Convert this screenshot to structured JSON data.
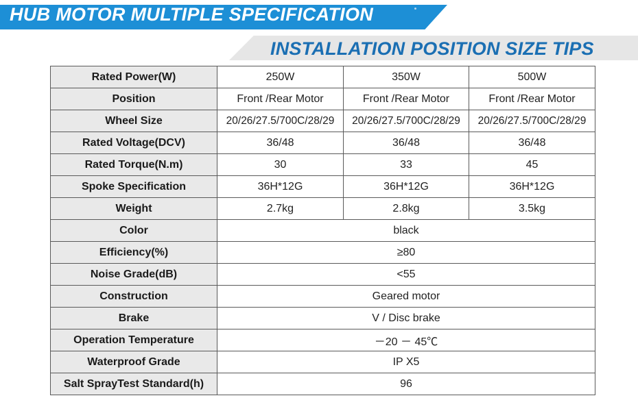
{
  "header": {
    "title": "HUB MOTOR MULTIPLE SPECIFICATION",
    "subtitle": "INSTALLATION  POSITION SIZE TIPS",
    "title_bg": "#1d8fd6",
    "subtitle_color": "#1b6fb3"
  },
  "table": {
    "rows": [
      {
        "label": "Rated Power(W)",
        "values": [
          "250W",
          "350W",
          "500W"
        ]
      },
      {
        "label": "Position",
        "values": [
          "Front /Rear Motor",
          "Front /Rear Motor",
          "Front /Rear Motor"
        ]
      },
      {
        "label": "Wheel Size",
        "values": [
          "20/26/27.5/700C/28/29",
          "20/26/27.5/700C/28/29",
          "20/26/27.5/700C/28/29"
        ]
      },
      {
        "label": "Rated Voltage(DCV)",
        "values": [
          "36/48",
          "36/48",
          "36/48"
        ]
      },
      {
        "label": "Rated Torque(N.m)",
        "values": [
          "30",
          "33",
          "45"
        ]
      },
      {
        "label": "Spoke Specification",
        "values": [
          "36H*12G",
          "36H*12G",
          "36H*12G"
        ]
      },
      {
        "label": "Weight",
        "values": [
          "2.7kg",
          "2.8kg",
          "3.5kg"
        ]
      },
      {
        "label": "Color",
        "value": "black"
      },
      {
        "label": "Efficiency(%)",
        "value": "≥80"
      },
      {
        "label": "Noise Grade(dB)",
        "value": "<55"
      },
      {
        "label": "Construction",
        "value": "Geared motor"
      },
      {
        "label": "Brake",
        "value": "V / Disc brake"
      },
      {
        "label": "Operation Temperature",
        "value": "－20 － 45℃"
      },
      {
        "label": "Waterproof Grade",
        "value": "IP X5"
      },
      {
        "label": "Salt SprayTest Standard(h)",
        "value": "96"
      }
    ]
  }
}
